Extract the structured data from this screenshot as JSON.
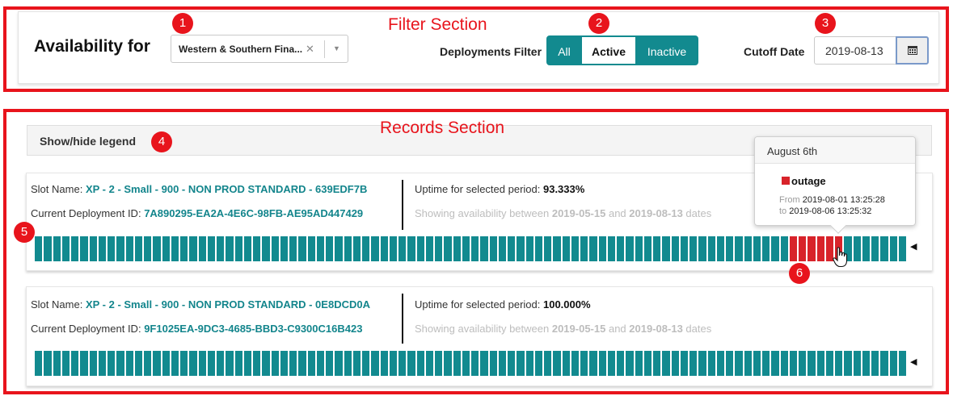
{
  "annotations": {
    "filter_section_title": "Filter Section",
    "records_section_title": "Records Section",
    "badges": [
      "1",
      "2",
      "3",
      "4",
      "5",
      "6"
    ]
  },
  "filter": {
    "availability_label": "Availability for",
    "company_select": {
      "value": "Western & Southern Fina...",
      "clear_icon": "close-icon",
      "dropdown_icon": "caret-down-icon"
    },
    "deployments_filter_label": "Deployments Filter",
    "segments": {
      "all": "All",
      "active": "Active",
      "inactive": "Inactive",
      "selected": "Active"
    },
    "cutoff_label": "Cutoff Date",
    "cutoff_date": "2019-08-13",
    "calendar_icon": "calendar-icon"
  },
  "records": {
    "legend_toggle": "Show/hide legend",
    "labels": {
      "slot_name": "Slot Name:",
      "deployment_id": "Current Deployment ID:",
      "uptime": "Uptime for selected period:",
      "showing_prefix": "Showing availability between",
      "and": "and",
      "dates": "dates"
    },
    "items": [
      {
        "slot_name": "XP - 2 - Small - 900 - NON PROD STANDARD - 639EDF7B",
        "deployment_id": "7A890295-EA2A-4E6C-98FB-AE95AD447429",
        "uptime": "93.333%",
        "from_date": "2019-05-15",
        "to_date": "2019-08-13",
        "outage_cells": [
          83,
          84,
          85,
          86,
          87,
          88
        ]
      },
      {
        "slot_name": "XP - 2 - Small - 900 - NON PROD STANDARD - 0E8DCD0A",
        "deployment_id": "9F1025EA-9DC3-4685-BBD3-C9300C16B423",
        "uptime": "100.000%",
        "from_date": "2019-05-15",
        "to_date": "2019-08-13",
        "outage_cells": []
      }
    ],
    "cells_per_row": 96
  },
  "tooltip": {
    "title": "August 6th",
    "status": "outage",
    "from_label": "From",
    "from": "2019-08-01 13:25:28",
    "to_label": "to",
    "to": "2019-08-06 13:25:32"
  },
  "colors": {
    "up": "#128a8f",
    "outage": "#d8232a",
    "annotation": "#e8141c"
  }
}
